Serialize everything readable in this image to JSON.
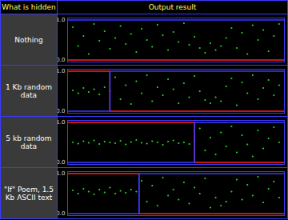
{
  "header": [
    "What is hidden",
    "Output result"
  ],
  "chart_data": [
    {
      "type": "scatter",
      "title": "Nothing",
      "xlim": [
        0,
        41
      ],
      "ylim": [
        -0.05,
        1.05
      ],
      "yticks": [
        0,
        1
      ],
      "tick_labels": "y",
      "series": [
        {
          "type": "scatter",
          "color": "#22dd22",
          "x": [
            1,
            2,
            3,
            4,
            5,
            6,
            7,
            8,
            9,
            10,
            11,
            12,
            13,
            14,
            15,
            16,
            17,
            18,
            19,
            20,
            21,
            22,
            23,
            24,
            25,
            26,
            27,
            28,
            29,
            30,
            31,
            32,
            33,
            34,
            35,
            36,
            37,
            38,
            39,
            40
          ],
          "values": [
            0.82,
            0.35,
            0.6,
            0.15,
            0.9,
            0.48,
            0.72,
            0.28,
            0.55,
            0.85,
            0.4,
            0.65,
            0.2,
            0.78,
            0.5,
            0.33,
            0.88,
            0.62,
            0.25,
            0.7,
            0.45,
            0.92,
            0.38,
            0.58,
            0.3,
            0.18,
            0.42,
            0.25,
            0.35,
            0.55,
            0.8,
            0.3,
            0.68,
            0.15,
            0.87,
            0.5,
            0.75,
            0.22,
            0.6,
            0.9
          ]
        },
        {
          "type": "line",
          "color": "#ff2020",
          "x": [
            0,
            41
          ],
          "values": [
            0,
            0
          ]
        },
        {
          "type": "line",
          "color": "#3a3aff",
          "x": [
            0,
            41
          ],
          "values": [
            1,
            1
          ]
        }
      ]
    },
    {
      "type": "scatter",
      "title": "1 Kb random data",
      "xlim": [
        0,
        41
      ],
      "ylim": [
        -0.05,
        1.05
      ],
      "yticks": [
        0,
        1
      ],
      "tick_labels": "y",
      "series": [
        {
          "type": "scatter",
          "color": "#22dd22",
          "x": [
            1,
            2,
            3,
            4,
            5,
            6,
            7,
            8,
            9,
            10,
            11,
            12,
            13,
            14,
            15,
            16,
            17,
            18,
            19,
            20,
            21,
            22,
            23,
            24,
            25,
            26,
            27,
            28,
            29,
            30,
            31,
            32,
            33,
            34,
            35,
            36,
            37,
            38,
            39,
            40
          ],
          "values": [
            0.52,
            0.45,
            0.58,
            0.48,
            0.55,
            0.42,
            0.6,
            0.5,
            0.85,
            0.3,
            0.65,
            0.18,
            0.75,
            0.45,
            0.9,
            0.25,
            0.6,
            0.4,
            0.8,
            0.55,
            0.2,
            0.7,
            0.35,
            0.88,
            0.5,
            0.28,
            0.2,
            0.35,
            0.25,
            0.62,
            0.82,
            0.15,
            0.72,
            0.45,
            0.9,
            0.3,
            0.58,
            0.78,
            0.4,
            0.65
          ]
        },
        {
          "type": "line",
          "color": "#ff2020",
          "x": [
            0,
            8,
            8,
            41
          ],
          "values": [
            1,
            1,
            0,
            0
          ]
        },
        {
          "type": "line",
          "color": "#3a3aff",
          "x": [
            0,
            8,
            8,
            41
          ],
          "values": [
            0,
            0,
            1,
            1
          ]
        }
      ]
    },
    {
      "type": "scatter",
      "title": "5 kb random data",
      "xlim": [
        0,
        41
      ],
      "ylim": [
        -0.05,
        1.05
      ],
      "yticks": [
        0,
        1
      ],
      "tick_labels": "y",
      "series": [
        {
          "type": "scatter",
          "color": "#22dd22",
          "x": [
            1,
            2,
            3,
            4,
            5,
            6,
            7,
            8,
            9,
            10,
            11,
            12,
            13,
            14,
            15,
            16,
            17,
            18,
            19,
            20,
            21,
            22,
            23,
            24,
            25,
            26,
            27,
            28,
            29,
            30,
            31,
            32,
            33,
            34,
            35,
            36,
            37,
            38,
            39,
            40
          ],
          "values": [
            0.5,
            0.47,
            0.53,
            0.49,
            0.55,
            0.46,
            0.52,
            0.5,
            0.48,
            0.54,
            0.45,
            0.51,
            0.56,
            0.49,
            0.47,
            0.53,
            0.5,
            0.44,
            0.52,
            0.55,
            0.48,
            0.5,
            0.46,
            0.53,
            0.85,
            0.3,
            0.62,
            0.2,
            0.75,
            0.4,
            0.9,
            0.25,
            0.68,
            0.45,
            0.15,
            0.8,
            0.35,
            0.6,
            0.88,
            0.5
          ]
        },
        {
          "type": "line",
          "color": "#ff2020",
          "x": [
            0,
            24,
            24,
            41
          ],
          "values": [
            1,
            1,
            0,
            0
          ]
        },
        {
          "type": "line",
          "color": "#3a3aff",
          "x": [
            0,
            24,
            24,
            41
          ],
          "values": [
            0,
            0,
            1,
            1
          ]
        }
      ]
    },
    {
      "type": "scatter",
      "title": "\"If\" Poem, 1.5 Kb ASCII text",
      "xlim": [
        0,
        41
      ],
      "ylim": [
        -0.05,
        1.05
      ],
      "yticks": [
        0,
        1
      ],
      "tick_labels": "y",
      "series": [
        {
          "type": "scatter",
          "color": "#22dd22",
          "x": [
            1,
            2,
            3,
            4,
            5,
            6,
            7,
            8,
            9,
            10,
            11,
            12,
            13,
            14,
            15,
            16,
            17,
            18,
            19,
            20,
            21,
            22,
            23,
            24,
            25,
            26,
            27,
            28,
            29,
            30,
            31,
            32,
            33,
            34,
            35,
            36,
            37,
            38,
            39,
            40
          ],
          "values": [
            0.58,
            0.5,
            0.62,
            0.55,
            0.48,
            0.6,
            0.53,
            0.65,
            0.5,
            0.57,
            0.52,
            0.6,
            0.55,
            0.82,
            0.3,
            0.7,
            0.2,
            0.9,
            0.45,
            0.6,
            0.35,
            0.78,
            0.25,
            0.65,
            0.5,
            0.88,
            0.15,
            0.4,
            0.2,
            0.3,
            0.55,
            0.85,
            0.35,
            0.72,
            0.45,
            0.92,
            0.28,
            0.62,
            0.8,
            0.4
          ]
        },
        {
          "type": "line",
          "color": "#ff2020",
          "x": [
            0,
            13.5,
            13.5,
            41
          ],
          "values": [
            1,
            1,
            0,
            0
          ]
        },
        {
          "type": "line",
          "color": "#3a3aff",
          "x": [
            0,
            13.5,
            13.5,
            41
          ],
          "values": [
            0,
            0,
            1,
            1
          ]
        }
      ]
    }
  ]
}
